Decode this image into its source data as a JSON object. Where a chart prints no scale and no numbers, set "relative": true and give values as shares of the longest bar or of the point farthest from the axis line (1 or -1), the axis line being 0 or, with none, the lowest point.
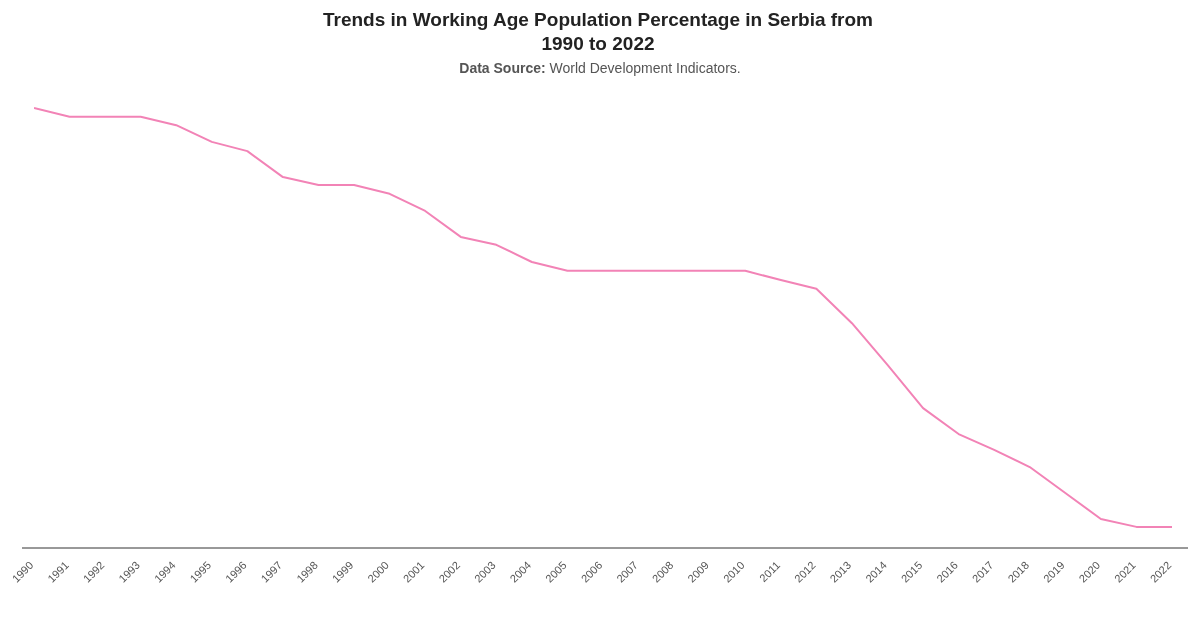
{
  "chart_data": {
    "type": "line",
    "title": "Trends in Working Age Population Percentage in Serbia from 1990 to 2022",
    "subtitle": "Data Source: World Development Indicators.",
    "relative": true,
    "marker": "none",
    "line_style": "solid",
    "categories": [
      "1990",
      "1991",
      "1992",
      "1993",
      "1994",
      "1995",
      "1996",
      "1997",
      "1998",
      "1999",
      "2000",
      "2001",
      "2002",
      "2003",
      "2004",
      "2005",
      "2006",
      "2007",
      "2008",
      "2009",
      "2010",
      "2011",
      "2012",
      "2013",
      "2014",
      "2015",
      "2016",
      "2017",
      "2018",
      "2019",
      "2020",
      "2021",
      "2022"
    ],
    "series": [
      {
        "color": "#f283b6",
        "values": [
          1.0,
          0.98,
          0.98,
          0.98,
          0.961,
          0.923,
          0.902,
          0.843,
          0.825,
          0.825,
          0.805,
          0.766,
          0.707,
          0.689,
          0.65,
          0.63,
          0.63,
          0.63,
          0.63,
          0.63,
          0.63,
          0.609,
          0.589,
          0.511,
          0.416,
          0.318,
          0.259,
          0.223,
          0.184,
          0.125,
          0.066,
          0.048,
          0.048
        ]
      }
    ]
  }
}
